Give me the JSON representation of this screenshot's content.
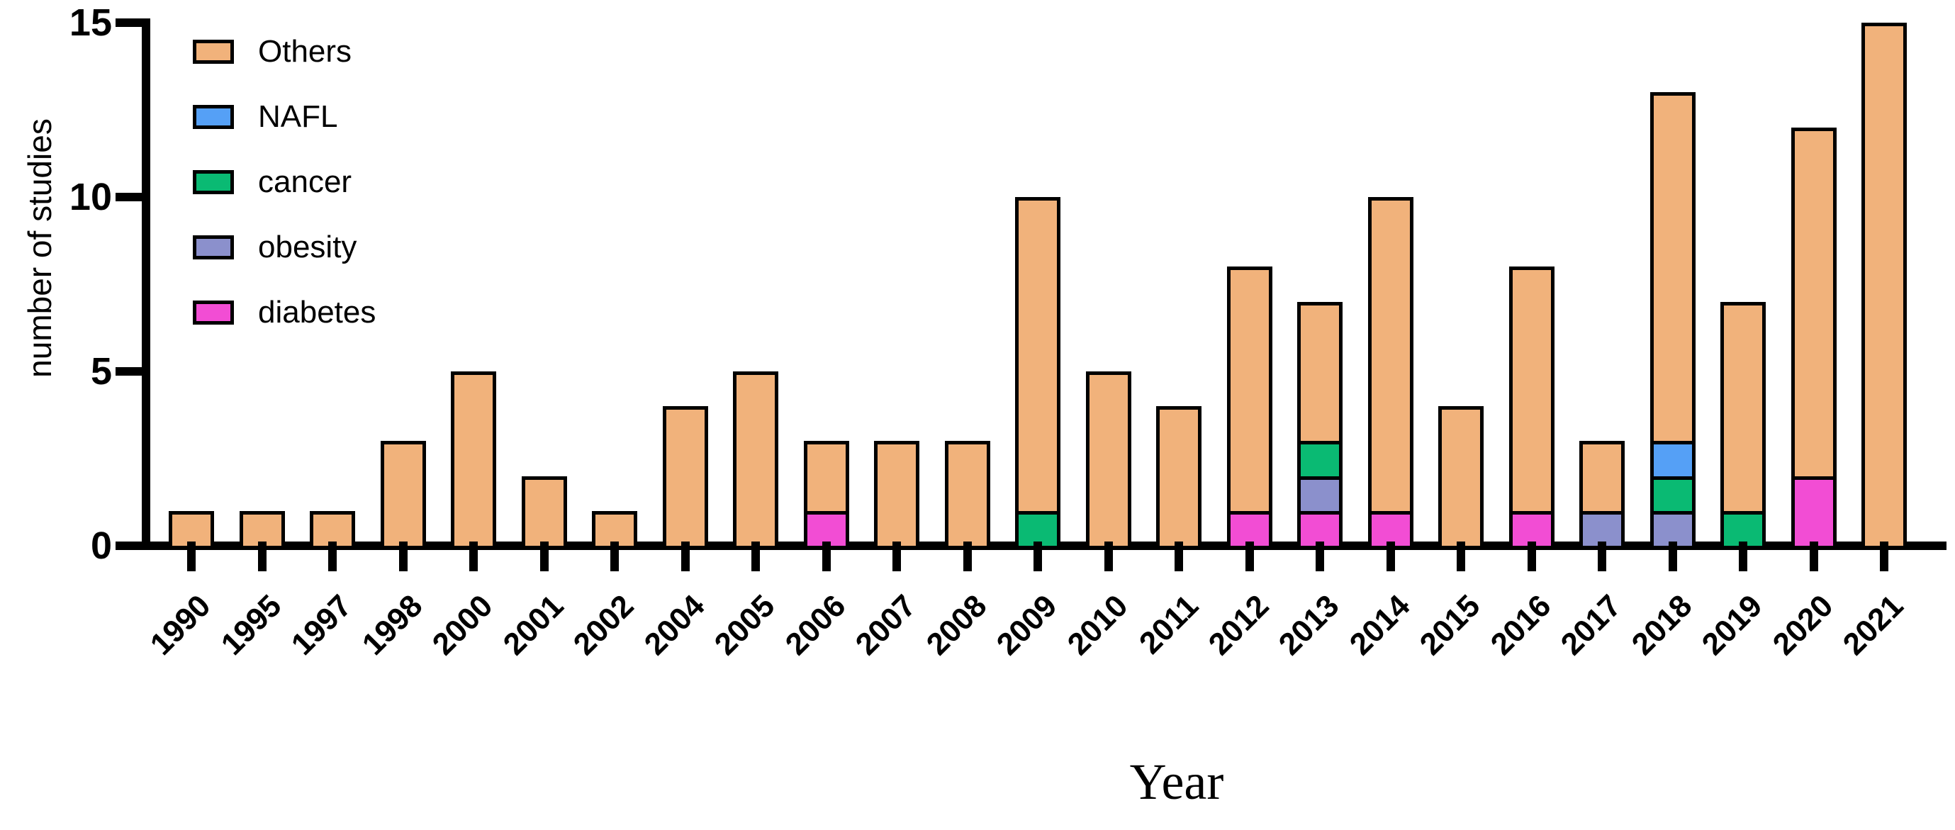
{
  "chart_data": {
    "type": "bar",
    "stacked": true,
    "title": "",
    "xlabel": "Year",
    "ylabel": "number of studies",
    "ylim": [
      0,
      15
    ],
    "yticks": [
      0,
      5,
      10,
      15
    ],
    "grid": false,
    "legend_position": "top-left-inside",
    "axis_color": "#000000",
    "background_color": "#FFFFFF",
    "categories": [
      "1990",
      "1995",
      "1997",
      "1998",
      "2000",
      "2001",
      "2002",
      "2004",
      "2005",
      "2006",
      "2007",
      "2008",
      "2009",
      "2010",
      "2011",
      "2012",
      "2013",
      "2014",
      "2015",
      "2016",
      "2017",
      "2018",
      "2019",
      "2020",
      "2021"
    ],
    "legend_items": [
      {
        "label": "Others",
        "color": "#F1B27B"
      },
      {
        "label": "NAFL",
        "color": "#55A0F6"
      },
      {
        "label": "cancer",
        "color": "#0ABA73"
      },
      {
        "label": "obesity",
        "color": "#8B90CC"
      },
      {
        "label": "diabetes",
        "color": "#F24DD4"
      }
    ],
    "stack_order_note": "series listed bottom-to-top as stacked in each bar",
    "series": [
      {
        "name": "diabetes",
        "color": "#F24DD4",
        "values": [
          0,
          0,
          0,
          0,
          0,
          0,
          0,
          0,
          0,
          1,
          0,
          0,
          0,
          0,
          0,
          1,
          1,
          1,
          0,
          1,
          0,
          0,
          0,
          2,
          0
        ]
      },
      {
        "name": "obesity",
        "color": "#8B90CC",
        "values": [
          0,
          0,
          0,
          0,
          0,
          0,
          0,
          0,
          0,
          0,
          0,
          0,
          0,
          0,
          0,
          0,
          1,
          0,
          0,
          0,
          1,
          1,
          0,
          0,
          0
        ]
      },
      {
        "name": "cancer",
        "color": "#0ABA73",
        "values": [
          0,
          0,
          0,
          0,
          0,
          0,
          0,
          0,
          0,
          0,
          0,
          0,
          1,
          0,
          0,
          0,
          1,
          0,
          0,
          0,
          0,
          1,
          1,
          0,
          0
        ]
      },
      {
        "name": "NAFL",
        "color": "#55A0F6",
        "values": [
          0,
          0,
          0,
          0,
          0,
          0,
          0,
          0,
          0,
          0,
          0,
          0,
          0,
          0,
          0,
          0,
          0,
          0,
          0,
          0,
          0,
          1,
          0,
          0,
          0
        ]
      },
      {
        "name": "Others",
        "color": "#F1B27B",
        "values": [
          1,
          1,
          1,
          3,
          5,
          2,
          1,
          4,
          5,
          2,
          3,
          3,
          9,
          5,
          4,
          7,
          4,
          9,
          4,
          7,
          2,
          10,
          6,
          10,
          15
        ]
      }
    ],
    "totals": [
      1,
      1,
      1,
      3,
      5,
      2,
      1,
      4,
      5,
      3,
      3,
      3,
      10,
      5,
      4,
      8,
      7,
      10,
      4,
      8,
      3,
      13,
      7,
      12,
      15
    ]
  }
}
